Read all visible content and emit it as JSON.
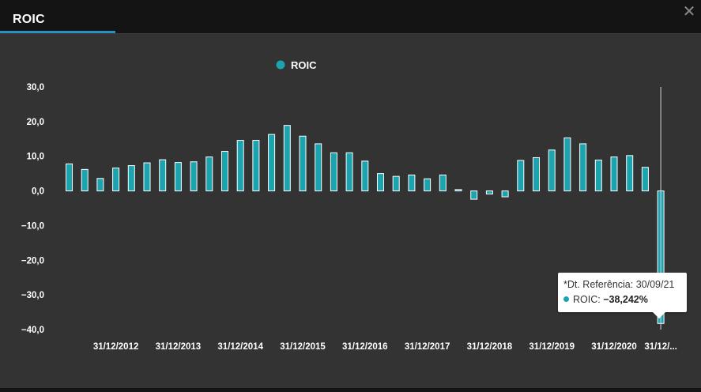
{
  "window": {
    "tab_title": "ROIC",
    "close_label": "✕"
  },
  "colors": {
    "bar": "#1ba3b0",
    "bar_stroke": "#ffffff",
    "background": "#333333",
    "text": "#ffffff"
  },
  "tooltip": {
    "header": "*Dt. Referência: 30/09/21",
    "series_label": "ROIC:",
    "value_text": "−38,242%"
  },
  "chart_data": {
    "type": "bar",
    "title": "",
    "xlabel": "",
    "ylabel": "",
    "legend": {
      "position": "top-center"
    },
    "series": [
      {
        "name": "ROIC",
        "values": [
          7.8,
          6.2,
          3.6,
          6.6,
          7.3,
          8.1,
          9.0,
          8.2,
          8.4,
          9.8,
          11.4,
          14.6,
          14.6,
          16.3,
          18.9,
          15.8,
          13.6,
          11.0,
          11.0,
          8.6,
          5.0,
          4.2,
          4.6,
          3.5,
          4.6,
          0.4,
          -2.4,
          -0.9,
          -1.7,
          8.8,
          9.6,
          11.8,
          15.3,
          13.6,
          8.9,
          9.8,
          10.2,
          6.8,
          -38.242
        ]
      }
    ],
    "x_tick_labels": [
      "31/12/2012",
      "31/12/2013",
      "31/12/2014",
      "31/12/2015",
      "31/12/2016",
      "31/12/2017",
      "31/12/2018",
      "31/12/2019",
      "31/12/2020",
      "31/12/..."
    ],
    "x_tick_bar_index": [
      3,
      7,
      11,
      15,
      19,
      23,
      27,
      31,
      35,
      38
    ],
    "y_tick_labels": [
      "30,0",
      "20,0",
      "10,0",
      "0,0",
      "−10,0",
      "−20,0",
      "−30,0",
      "−40,0"
    ],
    "y_tick_values": [
      30,
      20,
      10,
      0,
      -10,
      -20,
      -30,
      -40
    ],
    "ylim": [
      -40,
      30
    ],
    "grid": false
  }
}
